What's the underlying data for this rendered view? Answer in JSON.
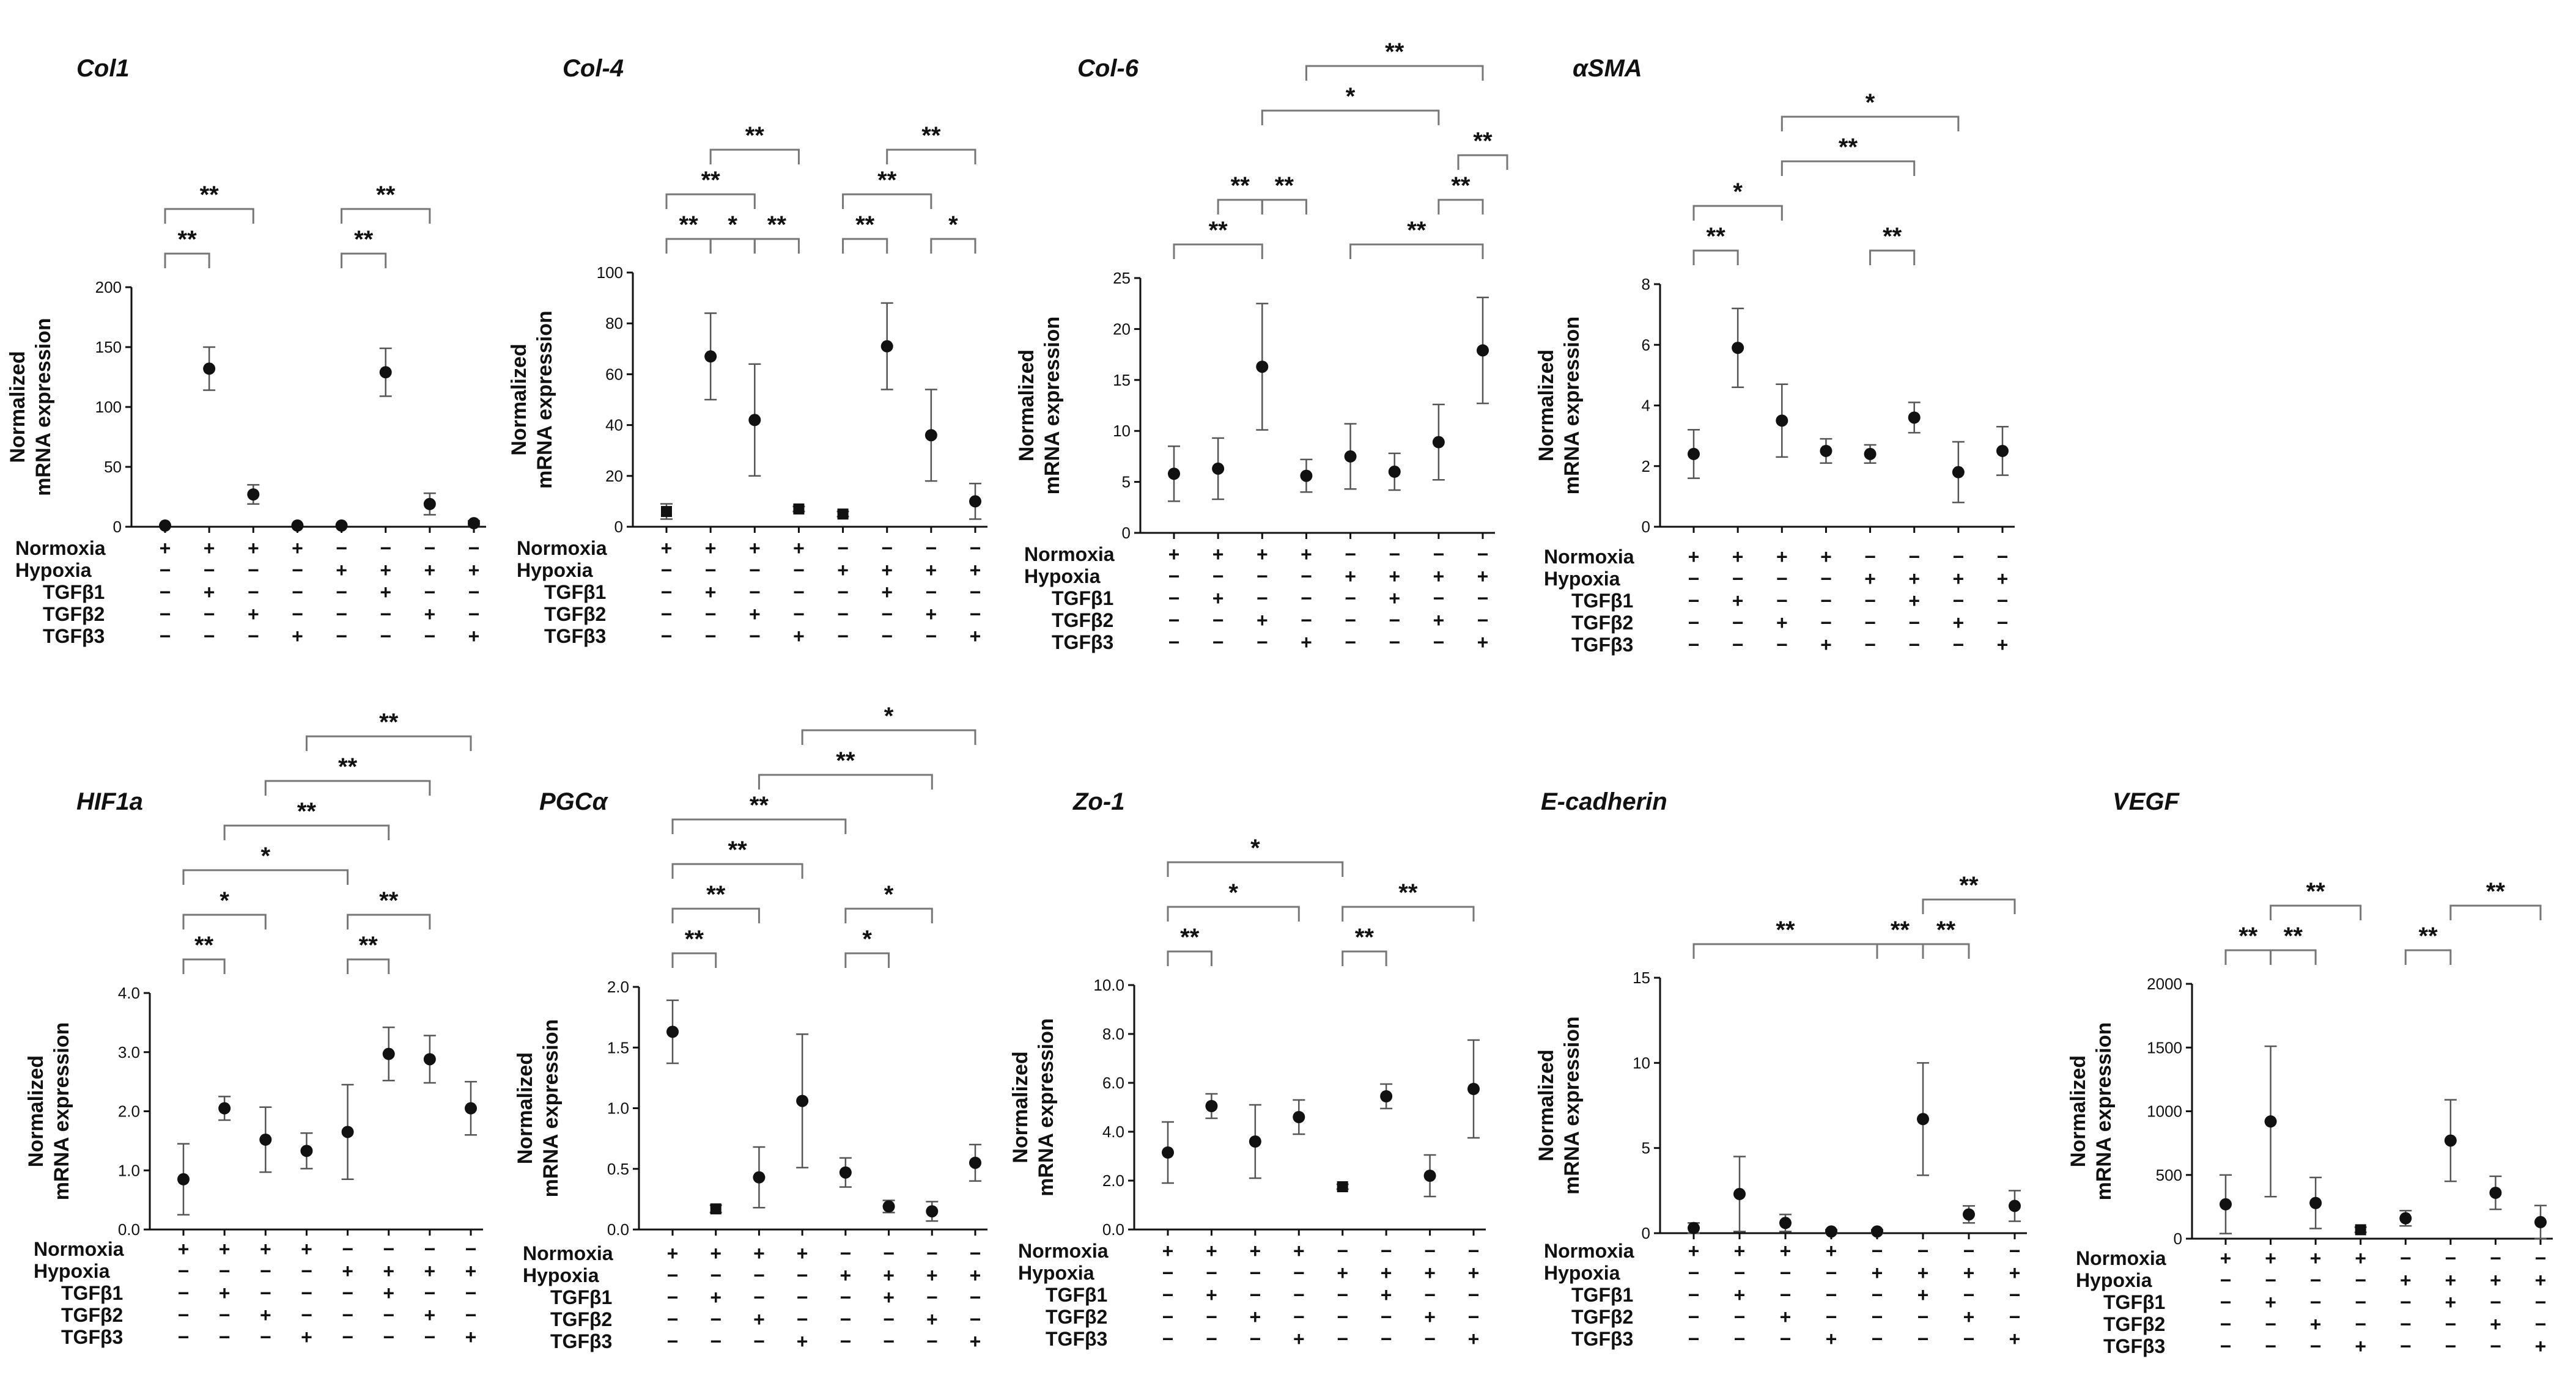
{
  "figure": {
    "ylabel_line1": "Normalized",
    "ylabel_line2": "mRNA expression",
    "conditions": [
      "Normoxia",
      "Hypoxia",
      "TGFβ1",
      "TGFβ2",
      "TGFβ3"
    ],
    "condition_matrix": [
      [
        "+",
        "+",
        "+",
        "+",
        "−",
        "−",
        "−",
        "−"
      ],
      [
        "−",
        "−",
        "−",
        "−",
        "+",
        "+",
        "+",
        "+"
      ],
      [
        "−",
        "+",
        "−",
        "−",
        "−",
        "+",
        "−",
        "−"
      ],
      [
        "−",
        "−",
        "+",
        "−",
        "−",
        "−",
        "+",
        "−"
      ],
      [
        "−",
        "−",
        "−",
        "+",
        "−",
        "−",
        "−",
        "+"
      ]
    ]
  },
  "chart_data": [
    {
      "type": "scatter",
      "title": "Col1",
      "ylim": [
        0,
        200
      ],
      "yticks": [
        "0",
        "50",
        "100",
        "150",
        "200"
      ],
      "values": [
        1,
        132,
        27,
        1,
        1,
        129,
        19,
        3
      ],
      "err": [
        1,
        18,
        8,
        1,
        1,
        20,
        9,
        2
      ],
      "markers": [
        "dot",
        "dot",
        "dot",
        "dot",
        "dot",
        "dot",
        "dot",
        "dot"
      ],
      "significance": [
        {
          "from": 1,
          "to": 2,
          "label": "**",
          "level": 0
        },
        {
          "from": 1,
          "to": 3,
          "label": "**",
          "level": 1
        },
        {
          "from": 5,
          "to": 6,
          "label": "**",
          "level": 0
        },
        {
          "from": 5,
          "to": 7,
          "label": "**",
          "level": 1
        }
      ]
    },
    {
      "type": "scatter",
      "title": "Col-4",
      "ylim": [
        0,
        100
      ],
      "yticks": [
        "0",
        "20",
        "40",
        "60",
        "80",
        "100"
      ],
      "values": [
        6,
        67,
        42,
        7,
        5,
        71,
        36,
        10
      ],
      "err": [
        3,
        17,
        22,
        1,
        1,
        17,
        18,
        7
      ],
      "markers": [
        "square",
        "dot",
        "dot",
        "square",
        "square",
        "dot",
        "dot",
        "dot"
      ],
      "significance": [
        {
          "from": 1,
          "to": 2,
          "label": "**",
          "level": 0
        },
        {
          "from": 2,
          "to": 3,
          "label": "*",
          "level": 0
        },
        {
          "from": 3,
          "to": 4,
          "label": "**",
          "level": 0
        },
        {
          "from": 1,
          "to": 3,
          "label": "**",
          "level": 1
        },
        {
          "from": 2,
          "to": 4,
          "label": "**",
          "level": 2
        },
        {
          "from": 5,
          "to": 6,
          "label": "**",
          "level": 0
        },
        {
          "from": 7,
          "to": 8,
          "label": "*",
          "level": 0
        },
        {
          "from": 5,
          "to": 7,
          "label": "**",
          "level": 1
        },
        {
          "from": 6,
          "to": 8,
          "label": "**",
          "level": 2
        }
      ]
    },
    {
      "type": "scatter",
      "title": "Col-6",
      "ylim": [
        0,
        25
      ],
      "yticks": [
        "0",
        "5",
        "10",
        "15",
        "20",
        "25"
      ],
      "values": [
        5.8,
        6.3,
        16.3,
        5.6,
        7.5,
        6.0,
        8.9,
        17.9
      ],
      "err": [
        2.7,
        3.0,
        6.2,
        1.6,
        3.2,
        1.8,
        3.7,
        5.2
      ],
      "markers": [
        "dot",
        "dot",
        "dot",
        "dot",
        "dot",
        "dot",
        "dot",
        "dot"
      ],
      "significance": [
        {
          "from": 1,
          "to": 3,
          "label": "**",
          "level": 0
        },
        {
          "from": 5,
          "to": 8,
          "label": "**",
          "level": 0
        },
        {
          "from": 3,
          "to": 4,
          "label": "**",
          "level": 1
        },
        {
          "from": 2,
          "to": 3,
          "label": "**",
          "level": 1
        },
        {
          "from": 7,
          "to": 8,
          "label": "**",
          "level": 1
        },
        {
          "from": 8,
          "to": 8,
          "label": "**",
          "level": 2
        },
        {
          "from": 3,
          "to": 7,
          "label": "*",
          "level": 3
        },
        {
          "from": 4,
          "to": 8,
          "label": "**",
          "level": 4
        }
      ]
    },
    {
      "type": "scatter",
      "title": "αSMA",
      "ylim": [
        0,
        8
      ],
      "yticks": [
        "0",
        "2",
        "4",
        "6",
        "8"
      ],
      "values": [
        2.4,
        5.9,
        3.5,
        2.5,
        2.4,
        3.6,
        1.8,
        2.5
      ],
      "err": [
        0.8,
        1.3,
        1.2,
        0.4,
        0.3,
        0.5,
        1.0,
        0.8
      ],
      "markers": [
        "dot",
        "dot",
        "dot",
        "dot",
        "dot",
        "dot",
        "dot",
        "dot"
      ],
      "significance": [
        {
          "from": 1,
          "to": 2,
          "label": "**",
          "level": 0
        },
        {
          "from": 5,
          "to": 6,
          "label": "**",
          "level": 0
        },
        {
          "from": 1,
          "to": 3,
          "label": "*",
          "level": 1
        },
        {
          "from": 3,
          "to": 6,
          "label": "**",
          "level": 2
        },
        {
          "from": 3,
          "to": 7,
          "label": "*",
          "level": 3
        }
      ]
    },
    {
      "type": "scatter",
      "title": "HIF1a",
      "ylim": [
        0,
        4
      ],
      "yticks": [
        "0.0",
        "1.0",
        "2.0",
        "3.0",
        "4.0"
      ],
      "values": [
        0.85,
        2.05,
        1.52,
        1.33,
        1.65,
        2.97,
        2.88,
        2.05
      ],
      "err": [
        0.6,
        0.2,
        0.55,
        0.3,
        0.8,
        0.45,
        0.4,
        0.45
      ],
      "markers": [
        "dot",
        "dot",
        "dot",
        "dot",
        "dot",
        "dot",
        "dot",
        "dot"
      ],
      "significance": [
        {
          "from": 1,
          "to": 2,
          "label": "**",
          "level": 0
        },
        {
          "from": 5,
          "to": 6,
          "label": "**",
          "level": 0
        },
        {
          "from": 1,
          "to": 3,
          "label": "*",
          "level": 1
        },
        {
          "from": 5,
          "to": 7,
          "label": "**",
          "level": 1
        },
        {
          "from": 1,
          "to": 5,
          "label": "*",
          "level": 2
        },
        {
          "from": 2,
          "to": 6,
          "label": "**",
          "level": 3
        },
        {
          "from": 3,
          "to": 7,
          "label": "**",
          "level": 4
        },
        {
          "from": 4,
          "to": 8,
          "label": "**",
          "level": 5
        }
      ]
    },
    {
      "type": "scatter",
      "title": "PGCα",
      "ylim": [
        0,
        2
      ],
      "yticks": [
        "0.0",
        "0.5",
        "1.0",
        "1.5",
        "2.0"
      ],
      "values": [
        1.63,
        0.17,
        0.43,
        1.06,
        0.47,
        0.19,
        0.15,
        0.55
      ],
      "err": [
        0.26,
        0.03,
        0.25,
        0.55,
        0.12,
        0.05,
        0.08,
        0.15
      ],
      "markers": [
        "dot",
        "square",
        "dot",
        "dot",
        "dot",
        "dot",
        "dot",
        "dot"
      ],
      "significance": [
        {
          "from": 1,
          "to": 2,
          "label": "**",
          "level": 0
        },
        {
          "from": 5,
          "to": 6,
          "label": "*",
          "level": 0
        },
        {
          "from": 1,
          "to": 3,
          "label": "**",
          "level": 1
        },
        {
          "from": 5,
          "to": 7,
          "label": "*",
          "level": 1
        },
        {
          "from": 1,
          "to": 4,
          "label": "**",
          "level": 2
        },
        {
          "from": 1,
          "to": 5,
          "label": "**",
          "level": 3
        },
        {
          "from": 3,
          "to": 7,
          "label": "**",
          "level": 4
        },
        {
          "from": 4,
          "to": 8,
          "label": "*",
          "level": 5
        }
      ]
    },
    {
      "type": "scatter",
      "title": "Zo-1",
      "ylim": [
        0,
        10
      ],
      "yticks": [
        "0.0",
        "2.0",
        "4.0",
        "6.0",
        "8.0",
        "10.0"
      ],
      "values": [
        3.15,
        5.05,
        3.6,
        4.6,
        1.75,
        5.45,
        2.2,
        5.75
      ],
      "err": [
        1.25,
        0.5,
        1.5,
        0.7,
        0.1,
        0.5,
        0.85,
        2.0
      ],
      "markers": [
        "dot",
        "dot",
        "dot",
        "dot",
        "square",
        "dot",
        "dot",
        "dot"
      ],
      "significance": [
        {
          "from": 1,
          "to": 2,
          "label": "**",
          "level": 0
        },
        {
          "from": 5,
          "to": 6,
          "label": "**",
          "level": 0
        },
        {
          "from": 1,
          "to": 4,
          "label": "*",
          "level": 1
        },
        {
          "from": 5,
          "to": 8,
          "label": "**",
          "level": 1
        },
        {
          "from": 1,
          "to": 5,
          "label": "*",
          "level": 2
        }
      ]
    },
    {
      "type": "scatter",
      "title": "E-cadherin",
      "ylim": [
        0,
        15
      ],
      "yticks": [
        "0",
        "5",
        "10",
        "15"
      ],
      "values": [
        0.3,
        2.3,
        0.6,
        0.1,
        0.1,
        6.7,
        1.1,
        1.6
      ],
      "err": [
        0.3,
        2.2,
        0.5,
        0.1,
        0.1,
        3.3,
        0.5,
        0.9
      ],
      "markers": [
        "dot",
        "dot",
        "dot",
        "dot",
        "dot",
        "dot",
        "dot",
        "dot"
      ],
      "significance": [
        {
          "from": 1,
          "to": 5,
          "label": "**",
          "level": 0
        },
        {
          "from": 5,
          "to": 6,
          "label": "**",
          "level": 0
        },
        {
          "from": 6,
          "to": 7,
          "label": "**",
          "level": 0
        },
        {
          "from": 6,
          "to": 8,
          "label": "**",
          "level": 1
        }
      ]
    },
    {
      "type": "scatter",
      "title": "VEGF",
      "ylim": [
        0,
        2000
      ],
      "yticks": [
        "0",
        "500",
        "1000",
        "1500",
        "2000"
      ],
      "values": [
        270,
        920,
        280,
        70,
        160,
        770,
        360,
        130
      ],
      "err": [
        230,
        590,
        200,
        20,
        60,
        320,
        130,
        130
      ],
      "markers": [
        "dot",
        "dot",
        "dot",
        "square",
        "dot",
        "dot",
        "dot",
        "dot"
      ],
      "significance": [
        {
          "from": 1,
          "to": 2,
          "label": "**",
          "level": 0
        },
        {
          "from": 2,
          "to": 3,
          "label": "**",
          "level": 0
        },
        {
          "from": 5,
          "to": 6,
          "label": "**",
          "level": 0
        },
        {
          "from": 2,
          "to": 4,
          "label": "**",
          "level": 1
        },
        {
          "from": 6,
          "to": 8,
          "label": "**",
          "level": 1
        }
      ]
    }
  ]
}
